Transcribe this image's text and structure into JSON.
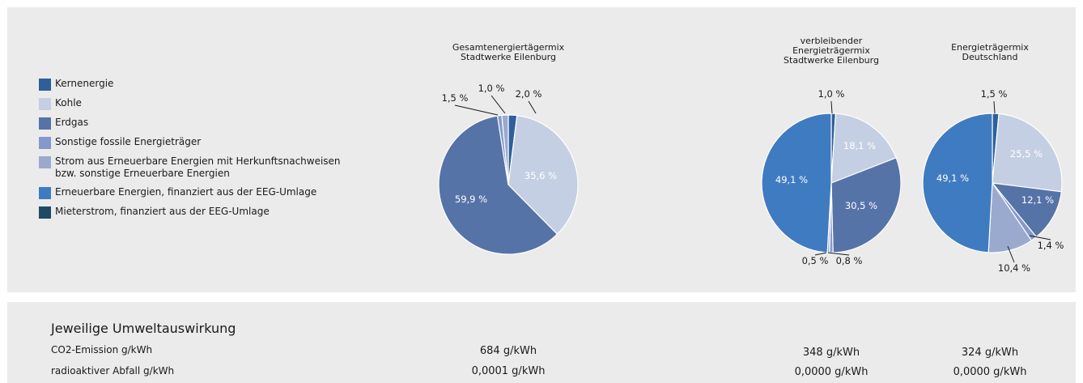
{
  "legend": [
    {
      "label": "Kernenergie",
      "color": "#2e5f9b"
    },
    {
      "label": "Kohle",
      "color": "#c5cfe3"
    },
    {
      "label": "Erdgas",
      "color": "#5673a8"
    },
    {
      "label": "Sonstige fossile Energieträger",
      "color": "#8499c8"
    },
    {
      "label": "Strom aus Erneuerbare Energien mit Herkunftsnachweisen\nbzw. sonstige Erneuerbare Energien",
      "color": "#9aaacf"
    },
    {
      "label": "Erneuerbare Energien, finanziert aus der EEG-Umlage",
      "color": "#3f7bc0"
    },
    {
      "label": "Mieterstrom, finanziert aus der EEG-Umlage",
      "color": "#1e4a63"
    }
  ],
  "chart_data": [
    {
      "type": "pie",
      "title": "Gesamtenergiertägermix\nStadtwerke Eilenburg",
      "slices": [
        {
          "category": "Kernenergie",
          "value": 2.0,
          "label": "2,0 %"
        },
        {
          "category": "Kohle",
          "value": 35.6,
          "label": "35,6 %"
        },
        {
          "category": "Erdgas",
          "value": 59.9,
          "label": "59,9 %"
        },
        {
          "category": "Sonstige fossile Energieträger",
          "value": 1.0,
          "label": "1,0 %"
        },
        {
          "category": "Strom aus Erneuerbare Energien mit Herkunftsnachweisen bzw. sonstige Erneuerbare Energien",
          "value": 1.5,
          "label": "1,5 %"
        }
      ]
    },
    {
      "type": "pie",
      "title": "verbleibender\nEnergieträgermix\nStadtwerke Eilenburg",
      "slices": [
        {
          "category": "Kernenergie",
          "value": 1.0,
          "label": "1,0 %"
        },
        {
          "category": "Kohle",
          "value": 18.1,
          "label": "18,1 %"
        },
        {
          "category": "Erdgas",
          "value": 30.5,
          "label": "30,5 %"
        },
        {
          "category": "Sonstige fossile Energieträger",
          "value": 0.8,
          "label": "0,8 %"
        },
        {
          "category": "Strom aus Erneuerbare Energien mit Herkunftsnachweisen bzw. sonstige Erneuerbare Energien",
          "value": 0.5,
          "label": "0,5 %"
        },
        {
          "category": "Erneuerbare Energien, finanziert aus der EEG-Umlage",
          "value": 49.1,
          "label": "49,1 %"
        }
      ]
    },
    {
      "type": "pie",
      "title": "Energieträgermix\nDeutschland",
      "slices": [
        {
          "category": "Kernenergie",
          "value": 1.5,
          "label": "1,5 %"
        },
        {
          "category": "Kohle",
          "value": 25.5,
          "label": "25,5 %"
        },
        {
          "category": "Erdgas",
          "value": 12.1,
          "label": "12,1 %"
        },
        {
          "category": "Sonstige fossile Energieträger",
          "value": 1.4,
          "label": "1,4 %"
        },
        {
          "category": "Strom aus Erneuerbare Energien mit Herkunftsnachweisen bzw. sonstige Erneuerbare Energien",
          "value": 10.4,
          "label": "10,4 %"
        },
        {
          "category": "Erneuerbare Energien, finanziert aus der EEG-Umlage",
          "value": 49.1,
          "label": "49,1 %"
        }
      ]
    }
  ],
  "umwelt": {
    "title": "Jeweilige Umweltauswirkung",
    "rows": [
      {
        "label": "CO2-Emission g/kWh",
        "values": [
          "684 g/kWh",
          "348 g/kWh",
          "324 g/kWh"
        ]
      },
      {
        "label": "radioaktiver Abfall g/kWh",
        "values": [
          "0,0001 g/kWh",
          "0,0000 g/kWh",
          "0,0000 g/kWh"
        ]
      }
    ]
  }
}
